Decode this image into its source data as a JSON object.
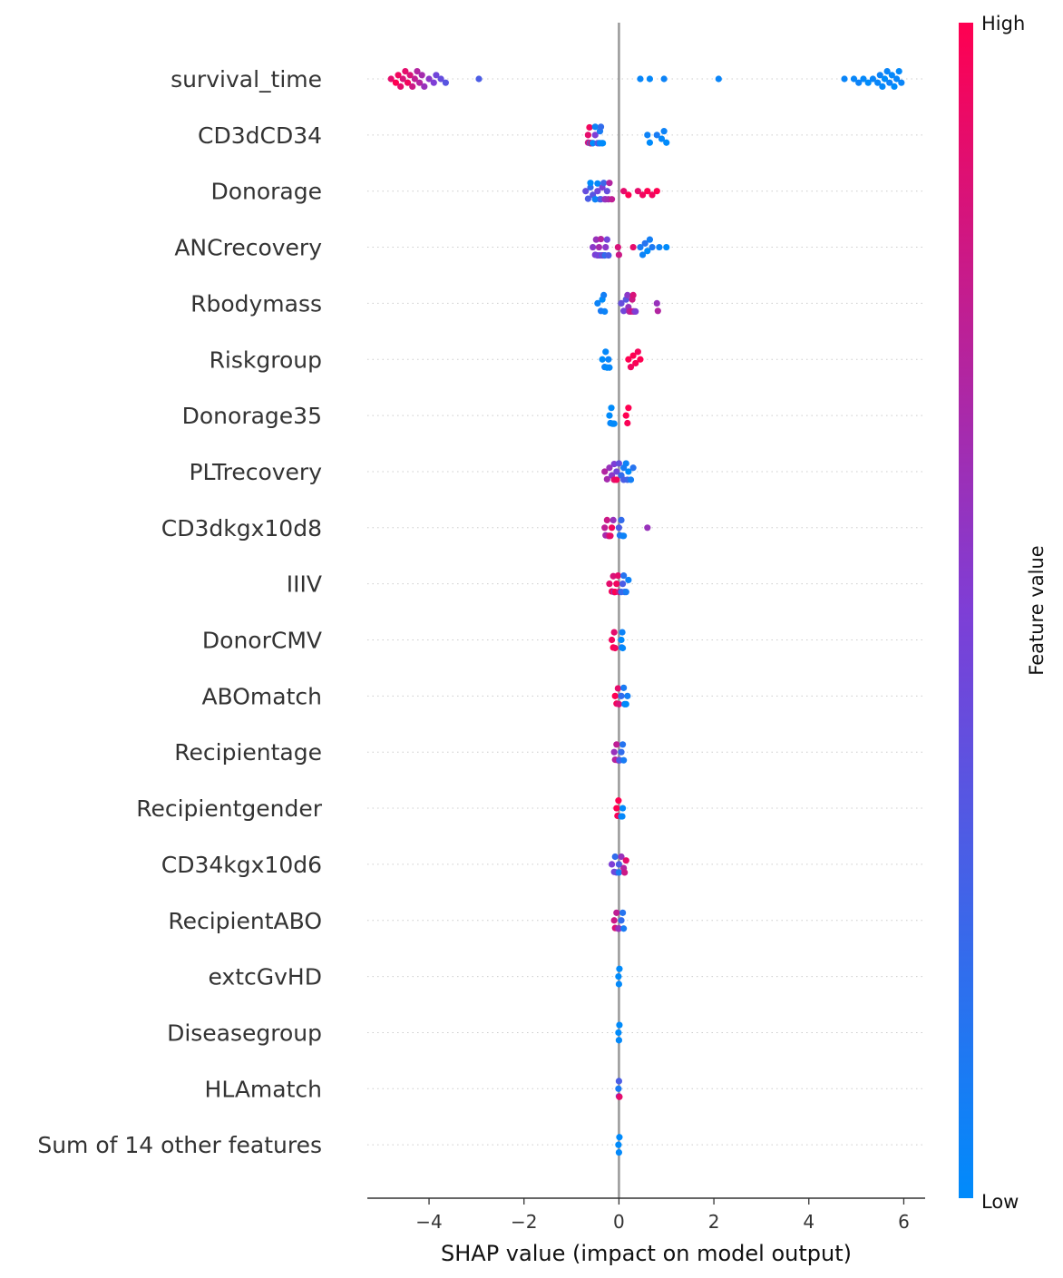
{
  "chart_data": {
    "type": "scatter",
    "subtype": "shap-beeswarm",
    "xlabel": "SHAP value (impact on model output)",
    "xlim": [
      -5.3,
      6.45
    ],
    "xticks": [
      -4,
      -2,
      0,
      2,
      4,
      6
    ],
    "xtick_labels": [
      "−4",
      "−2",
      "0",
      "2",
      "4",
      "6"
    ],
    "zero_line": 0,
    "grid": "dotted horizontal row guides",
    "colorbar": {
      "label": "Feature value",
      "high_label": "High",
      "low_label": "Low",
      "colors": [
        "#008bfb",
        "#7e3ed6",
        "#ff0051"
      ],
      "placement": "right"
    },
    "colors": {
      "low": "#008bfb",
      "high": "#ff0051",
      "zero_line": "#999999",
      "axis": "#333333"
    },
    "features": [
      {
        "name": "survival_time",
        "points": [
          [
            -4.8,
            0.9
          ],
          [
            -4.7,
            1
          ],
          [
            -4.65,
            0.95
          ],
          [
            -4.6,
            0.9
          ],
          [
            -4.55,
            0.85
          ],
          [
            -4.5,
            0.9
          ],
          [
            -4.45,
            0.95
          ],
          [
            -4.4,
            0.85
          ],
          [
            -4.35,
            0.8
          ],
          [
            -4.3,
            0.75
          ],
          [
            -4.25,
            0.7
          ],
          [
            -4.2,
            0.7
          ],
          [
            -4.15,
            0.65
          ],
          [
            -4.1,
            0.6
          ],
          [
            -4.0,
            0.55
          ],
          [
            -3.9,
            0.5
          ],
          [
            -3.85,
            0.45
          ],
          [
            -3.75,
            0.4
          ],
          [
            -3.65,
            0.35
          ],
          [
            -2.95,
            0.3
          ],
          [
            0.45,
            0.03
          ],
          [
            0.65,
            0.02
          ],
          [
            0.95,
            0.05
          ],
          [
            2.1,
            0.04
          ],
          [
            4.75,
            0.04
          ],
          [
            4.95,
            0.03
          ],
          [
            5.05,
            0.05
          ],
          [
            5.15,
            0.02
          ],
          [
            5.25,
            0
          ],
          [
            5.35,
            0.04
          ],
          [
            5.45,
            0.03
          ],
          [
            5.5,
            0.05
          ],
          [
            5.55,
            0.02
          ],
          [
            5.6,
            0
          ],
          [
            5.65,
            0.04
          ],
          [
            5.7,
            0.06
          ],
          [
            5.75,
            0.02
          ],
          [
            5.8,
            0
          ],
          [
            5.85,
            0.03
          ],
          [
            5.9,
            0.01
          ],
          [
            5.95,
            0.04
          ]
        ]
      },
      {
        "name": "CD3dCD34",
        "points": [
          [
            -0.65,
            0.9
          ],
          [
            -0.65,
            0.8
          ],
          [
            -0.62,
            0.95
          ],
          [
            -0.6,
            0.85
          ],
          [
            -0.6,
            0.7
          ],
          [
            -0.58,
            1
          ],
          [
            -0.55,
            0.6
          ],
          [
            -0.5,
            0.5
          ],
          [
            -0.45,
            0.3
          ],
          [
            -0.42,
            0.4
          ],
          [
            -0.4,
            0.1
          ],
          [
            -0.38,
            0.2
          ],
          [
            -0.36,
            0.05
          ],
          [
            -0.34,
            0
          ],
          [
            -0.4,
            0
          ],
          [
            -0.5,
            0.05
          ],
          [
            -0.55,
            0
          ],
          [
            -0.6,
            0.1
          ],
          [
            0.6,
            0.05
          ],
          [
            0.65,
            0
          ],
          [
            0.8,
            0.1
          ],
          [
            0.9,
            0.02
          ],
          [
            0.95,
            0.05
          ],
          [
            1.0,
            0
          ]
        ]
      },
      {
        "name": "Donorage",
        "points": [
          [
            -0.7,
            0.4
          ],
          [
            -0.65,
            0.3
          ],
          [
            -0.6,
            0.2
          ],
          [
            -0.55,
            0.35
          ],
          [
            -0.5,
            0.15
          ],
          [
            -0.45,
            0.45
          ],
          [
            -0.4,
            0.1
          ],
          [
            -0.38,
            0.3
          ],
          [
            -0.35,
            0.5
          ],
          [
            -0.32,
            0.25
          ],
          [
            -0.3,
            0.55
          ],
          [
            -0.28,
            0.6
          ],
          [
            -0.25,
            0.4
          ],
          [
            -0.22,
            0.65
          ],
          [
            -0.2,
            0.7
          ],
          [
            -0.15,
            0.75
          ],
          [
            -0.5,
            0.05
          ],
          [
            -0.45,
            0.02
          ],
          [
            -0.6,
            0.0
          ],
          [
            0.1,
            0.9
          ],
          [
            0.2,
            1
          ],
          [
            0.4,
            0.9
          ],
          [
            0.5,
            0.95
          ],
          [
            0.6,
            1
          ],
          [
            0.7,
            0.95
          ],
          [
            0.8,
            1
          ]
        ]
      },
      {
        "name": "ANCrecovery",
        "points": [
          [
            -0.55,
            0.55
          ],
          [
            -0.5,
            0.5
          ],
          [
            -0.48,
            0.6
          ],
          [
            -0.45,
            0.45
          ],
          [
            -0.42,
            0.65
          ],
          [
            -0.4,
            0.5
          ],
          [
            -0.38,
            0.7
          ],
          [
            -0.35,
            0.4
          ],
          [
            -0.32,
            0.6
          ],
          [
            -0.3,
            0.35
          ],
          [
            -0.28,
            0.55
          ],
          [
            -0.25,
            0.45
          ],
          [
            -0.22,
            0.3
          ],
          [
            -0.35,
            0.3
          ],
          [
            -0.3,
            0.2
          ],
          [
            -0.02,
            0.85
          ],
          [
            0.0,
            0.8
          ],
          [
            0.3,
            0.9
          ],
          [
            0.45,
            0.1
          ],
          [
            0.5,
            0.05
          ],
          [
            0.55,
            0.15
          ],
          [
            0.6,
            0.0
          ],
          [
            0.65,
            0.08
          ],
          [
            0.7,
            0.12
          ],
          [
            0.85,
            0.05
          ],
          [
            1.0,
            0
          ]
        ]
      },
      {
        "name": "Rbodymass",
        "points": [
          [
            -0.45,
            0.05
          ],
          [
            -0.38,
            0.1
          ],
          [
            -0.35,
            0.0
          ],
          [
            -0.32,
            0.08
          ],
          [
            -0.3,
            0.05
          ],
          [
            0.05,
            0.4
          ],
          [
            0.1,
            0.45
          ],
          [
            0.15,
            0.35
          ],
          [
            0.18,
            0.55
          ],
          [
            0.2,
            0.6
          ],
          [
            0.22,
            0.7
          ],
          [
            0.25,
            0.75
          ],
          [
            0.28,
            0.8
          ],
          [
            0.3,
            0.85
          ],
          [
            0.3,
            0.9
          ],
          [
            0.32,
            0.65
          ],
          [
            0.35,
            0.5
          ],
          [
            0.8,
            0.6
          ],
          [
            0.82,
            0.7
          ]
        ]
      },
      {
        "name": "Riskgroup",
        "points": [
          [
            -0.35,
            0
          ],
          [
            -0.3,
            0.05
          ],
          [
            -0.28,
            0.02
          ],
          [
            -0.25,
            0
          ],
          [
            -0.22,
            0.04
          ],
          [
            -0.2,
            0.02
          ],
          [
            0.2,
            1
          ],
          [
            0.25,
            0.95
          ],
          [
            0.3,
            1
          ],
          [
            0.35,
            0.98
          ],
          [
            0.4,
            0.96
          ],
          [
            0.45,
            1
          ]
        ]
      },
      {
        "name": "Donorage35",
        "points": [
          [
            -0.2,
            0
          ],
          [
            -0.18,
            0.02
          ],
          [
            -0.16,
            0
          ],
          [
            -0.14,
            0.03
          ],
          [
            -0.12,
            0
          ],
          [
            -0.1,
            0.01
          ],
          [
            0.15,
            1
          ],
          [
            0.18,
            0.98
          ],
          [
            0.2,
            1
          ]
        ]
      },
      {
        "name": "PLTrecovery",
        "points": [
          [
            -0.3,
            0.7
          ],
          [
            -0.25,
            0.65
          ],
          [
            -0.2,
            0.6
          ],
          [
            -0.15,
            0.55
          ],
          [
            -0.1,
            0.5
          ],
          [
            -0.05,
            0.45
          ],
          [
            0.0,
            0.4
          ],
          [
            -0.1,
            0.9
          ],
          [
            -0.05,
            0.95
          ],
          [
            0.05,
            0.2
          ],
          [
            0.1,
            0.1
          ],
          [
            0.15,
            0.05
          ],
          [
            0.2,
            0.0
          ],
          [
            0.25,
            0.08
          ],
          [
            0.3,
            0.15
          ],
          [
            0.1,
            0.3
          ],
          [
            0.18,
            0.25
          ]
        ]
      },
      {
        "name": "CD3dkgx10d8",
        "points": [
          [
            -0.3,
            0.75
          ],
          [
            -0.28,
            0.65
          ],
          [
            -0.25,
            0.8
          ],
          [
            -0.22,
            0.7
          ],
          [
            -0.2,
            0.85
          ],
          [
            -0.18,
            0.9
          ],
          [
            -0.15,
            0.95
          ],
          [
            -0.12,
            0.6
          ],
          [
            0.0,
            0.3
          ],
          [
            0.05,
            0.2
          ],
          [
            0.08,
            0.1
          ],
          [
            0.1,
            0.05
          ],
          [
            0.02,
            0.15
          ],
          [
            0.6,
            0.6
          ]
        ]
      },
      {
        "name": "IIIV",
        "points": [
          [
            -0.2,
            0.9
          ],
          [
            -0.15,
            0.95
          ],
          [
            -0.12,
            0.85
          ],
          [
            -0.1,
            0.9
          ],
          [
            -0.08,
            1
          ],
          [
            -0.05,
            0.95
          ],
          [
            -0.02,
            0.9
          ],
          [
            0.0,
            0.85
          ],
          [
            -0.1,
            0.6
          ],
          [
            0.05,
            0.2
          ],
          [
            0.1,
            0.15
          ],
          [
            0.15,
            0.1
          ],
          [
            0.2,
            0.05
          ],
          [
            0.08,
            0.3
          ],
          [
            0.12,
            0.25
          ]
        ]
      },
      {
        "name": "DonorCMV",
        "points": [
          [
            -0.15,
            0.95
          ],
          [
            -0.12,
            1
          ],
          [
            -0.1,
            0.9
          ],
          [
            -0.08,
            0.95
          ],
          [
            0.05,
            0
          ],
          [
            0.07,
            0.05
          ],
          [
            0.08,
            0.02
          ],
          [
            0.06,
            0.1
          ]
        ]
      },
      {
        "name": "ABOmatch",
        "points": [
          [
            -0.08,
            1
          ],
          [
            -0.05,
            0.95
          ],
          [
            -0.02,
            0.9
          ],
          [
            0.0,
            0.85
          ],
          [
            0.05,
            0.2
          ],
          [
            0.1,
            0.1
          ],
          [
            0.12,
            0.05
          ],
          [
            0.15,
            0.0
          ],
          [
            0.18,
            0.08
          ]
        ]
      },
      {
        "name": "Recipientage",
        "points": [
          [
            -0.08,
            0.7
          ],
          [
            -0.05,
            0.75
          ],
          [
            -0.02,
            0.8
          ],
          [
            0.0,
            0.5
          ],
          [
            0.02,
            0.3
          ],
          [
            0.05,
            0.2
          ],
          [
            0.08,
            0.15
          ],
          [
            0.1,
            0.1
          ],
          [
            -0.1,
            0.6
          ]
        ]
      },
      {
        "name": "Recipientgender",
        "points": [
          [
            -0.05,
            1
          ],
          [
            -0.03,
            0.98
          ],
          [
            -0.01,
            1
          ],
          [
            0.05,
            0
          ],
          [
            0.07,
            0.02
          ],
          [
            0.08,
            0.01
          ]
        ]
      },
      {
        "name": "CD34kgx10d6",
        "points": [
          [
            -0.15,
            0.5
          ],
          [
            -0.1,
            0.45
          ],
          [
            -0.05,
            0.4
          ],
          [
            0.0,
            0.3
          ],
          [
            0.05,
            0.6
          ],
          [
            0.1,
            0.7
          ],
          [
            0.12,
            0.8
          ],
          [
            0.15,
            0.9
          ],
          [
            0.0,
            0.1
          ],
          [
            -0.08,
            0.2
          ]
        ]
      },
      {
        "name": "RecipientABO",
        "points": [
          [
            -0.1,
            0.8
          ],
          [
            -0.08,
            0.85
          ],
          [
            -0.05,
            0.75
          ],
          [
            -0.02,
            0.7
          ],
          [
            0.0,
            0.5
          ],
          [
            0.05,
            0.2
          ],
          [
            0.08,
            0.15
          ],
          [
            0.1,
            0.1
          ],
          [
            0.0,
            0.6
          ]
        ]
      },
      {
        "name": "extcGvHD",
        "points": [
          [
            -0.01,
            0
          ],
          [
            0.0,
            0.01
          ],
          [
            0.01,
            0
          ]
        ]
      },
      {
        "name": "Diseasegroup",
        "points": [
          [
            -0.01,
            0
          ],
          [
            0.0,
            0.01
          ],
          [
            0.01,
            0
          ]
        ]
      },
      {
        "name": "HLAmatch",
        "points": [
          [
            -0.01,
            0.1
          ],
          [
            0.0,
            0.5
          ],
          [
            0.01,
            0.9
          ],
          [
            0.0,
            0.3
          ]
        ]
      },
      {
        "name": "Sum of 14 other features",
        "points": [
          [
            -0.01,
            0
          ],
          [
            0.0,
            0.01
          ],
          [
            0.01,
            0
          ]
        ]
      }
    ]
  }
}
